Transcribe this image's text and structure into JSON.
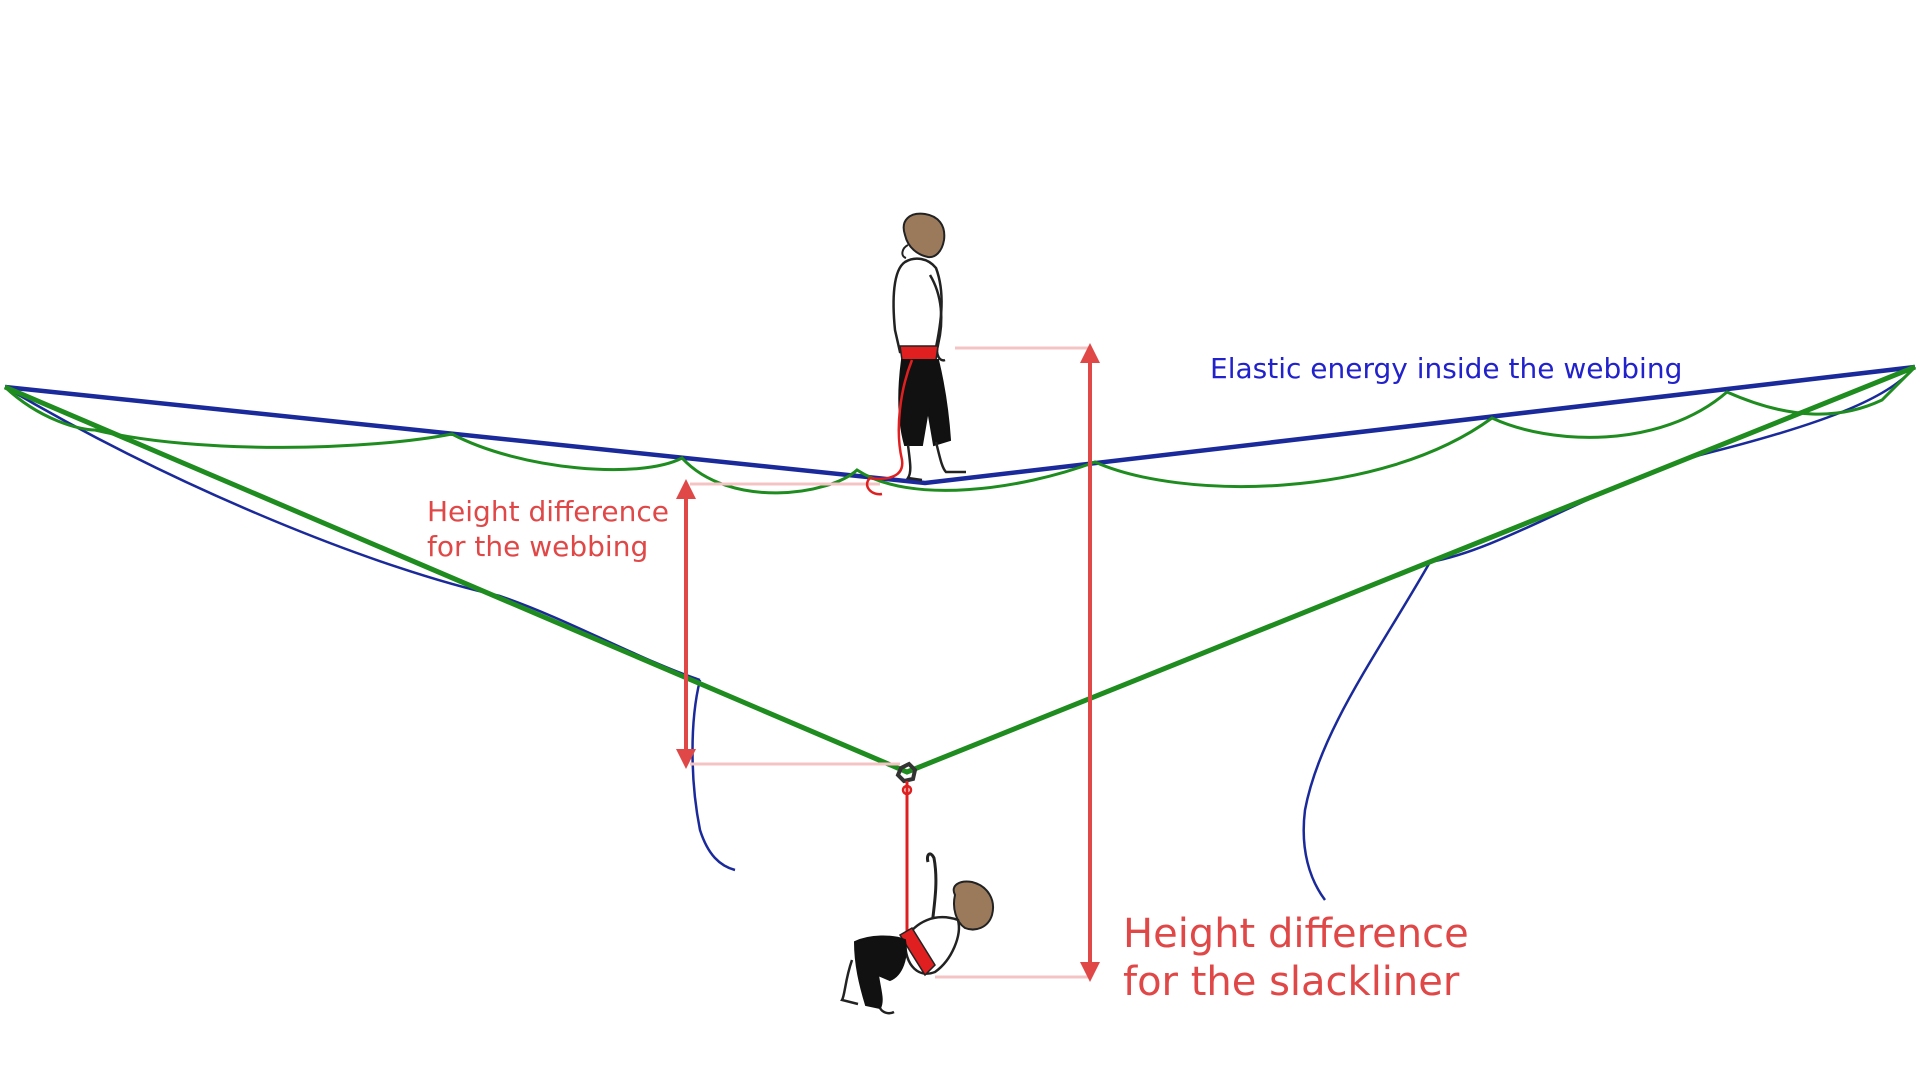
{
  "labels": {
    "elastic_energy": "Elastic energy inside the webbing",
    "webbing_height": {
      "line1": "Height difference",
      "line2": "for the webbing"
    },
    "slackliner_height": {
      "line1": "Height difference",
      "line2": "for the slackliner"
    }
  },
  "colors": {
    "webbing_blue": "#1a2a9a",
    "leash_green": "#1e8c1e",
    "measure_red": "#e04848",
    "guide_pink": "#f4c4c4",
    "elastic_text": "#2222cc",
    "hair_brown": "#9b7a5c"
  },
  "figures": [
    "slackliner-standing",
    "slackliner-hanging-fallen"
  ]
}
